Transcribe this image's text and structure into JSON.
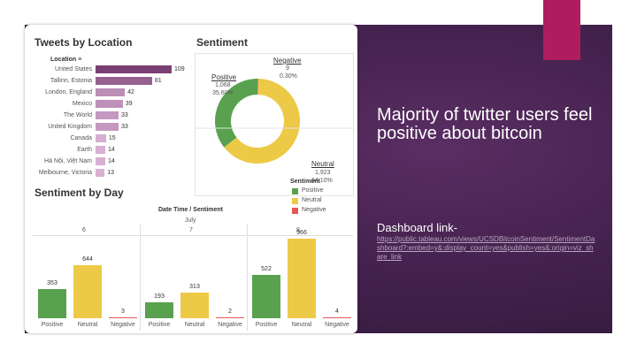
{
  "slide": {
    "heading": "Majority of twitter users feel positive about bitcoin",
    "link_heading": "Dashboard link-",
    "link_url": "https://public.tableau.com/views/UCSDBitcoinSentiment/SentimentDashboard?:embed=y&:display_count=yes&publish=yes&:origin=viz_share_link",
    "colors": {
      "panel": "#45224f",
      "accent": "#b01d5e"
    }
  },
  "dashboard": {
    "tweets_by_location": {
      "title": "Tweets by Location",
      "column_header": "Location",
      "rows": [
        {
          "label": "United States",
          "value": 109
        },
        {
          "label": "Tallinn, Estonia",
          "value": 81
        },
        {
          "label": "London, England",
          "value": 42
        },
        {
          "label": "Mexico",
          "value": 39
        },
        {
          "label": "The World",
          "value": 33
        },
        {
          "label": "United Kingdom",
          "value": 33
        },
        {
          "label": "Canada",
          "value": 15
        },
        {
          "label": "Earth",
          "value": 14
        },
        {
          "label": "Hà Nội, Việt Nam",
          "value": 14
        },
        {
          "label": "Melbourne, Victoria",
          "value": 13
        }
      ]
    },
    "sentiment": {
      "title": "Sentiment",
      "negative": {
        "label": "Negative",
        "count": "9",
        "pct": "0.30%",
        "value": 9
      },
      "positive": {
        "label": "Positive",
        "count": "1,068",
        "pct": "35.60%",
        "value": 1068
      },
      "neutral": {
        "label": "Neutral",
        "count": "1,923",
        "pct": "64.10%",
        "value": 1923
      }
    },
    "legend": {
      "title": "Sentiment",
      "items": [
        {
          "label": "Positive",
          "color": "#59a14f"
        },
        {
          "label": "Neutral",
          "color": "#edc948"
        },
        {
          "label": "Negative",
          "color": "#e15759"
        }
      ]
    },
    "sentiment_by_day": {
      "title": "Sentiment by Day",
      "header": "Date Time / Sentiment",
      "month": "July",
      "days": [
        {
          "day": "6",
          "positive": 353,
          "neutral": 644,
          "negative": 3
        },
        {
          "day": "7",
          "positive": 193,
          "neutral": 313,
          "negative": 2
        },
        {
          "day": "8",
          "positive": 522,
          "neutral": 966,
          "negative": 4
        }
      ],
      "categories": [
        "Positive",
        "Neutral",
        "Negative"
      ]
    }
  },
  "chart_data": [
    {
      "type": "bar",
      "title": "Tweets by Location",
      "categories": [
        "United States",
        "Tallinn, Estonia",
        "London, England",
        "Mexico",
        "The World",
        "United Kingdom",
        "Canada",
        "Earth",
        "Hà Nội, Việt Nam",
        "Melbourne, Victoria"
      ],
      "values": [
        109,
        81,
        42,
        39,
        33,
        33,
        15,
        14,
        14,
        13
      ],
      "ylabel": "Location"
    },
    {
      "type": "pie",
      "title": "Sentiment",
      "categories": [
        "Positive",
        "Neutral",
        "Negative"
      ],
      "values": [
        1068,
        1923,
        9
      ]
    },
    {
      "type": "bar",
      "title": "Sentiment by Day",
      "xlabel": "Date Time / Sentiment",
      "categories": [
        "6",
        "7",
        "8"
      ],
      "series": [
        {
          "name": "Positive",
          "values": [
            353,
            193,
            522
          ]
        },
        {
          "name": "Neutral",
          "values": [
            644,
            313,
            966
          ]
        },
        {
          "name": "Negative",
          "values": [
            3,
            2,
            4
          ]
        }
      ]
    }
  ]
}
